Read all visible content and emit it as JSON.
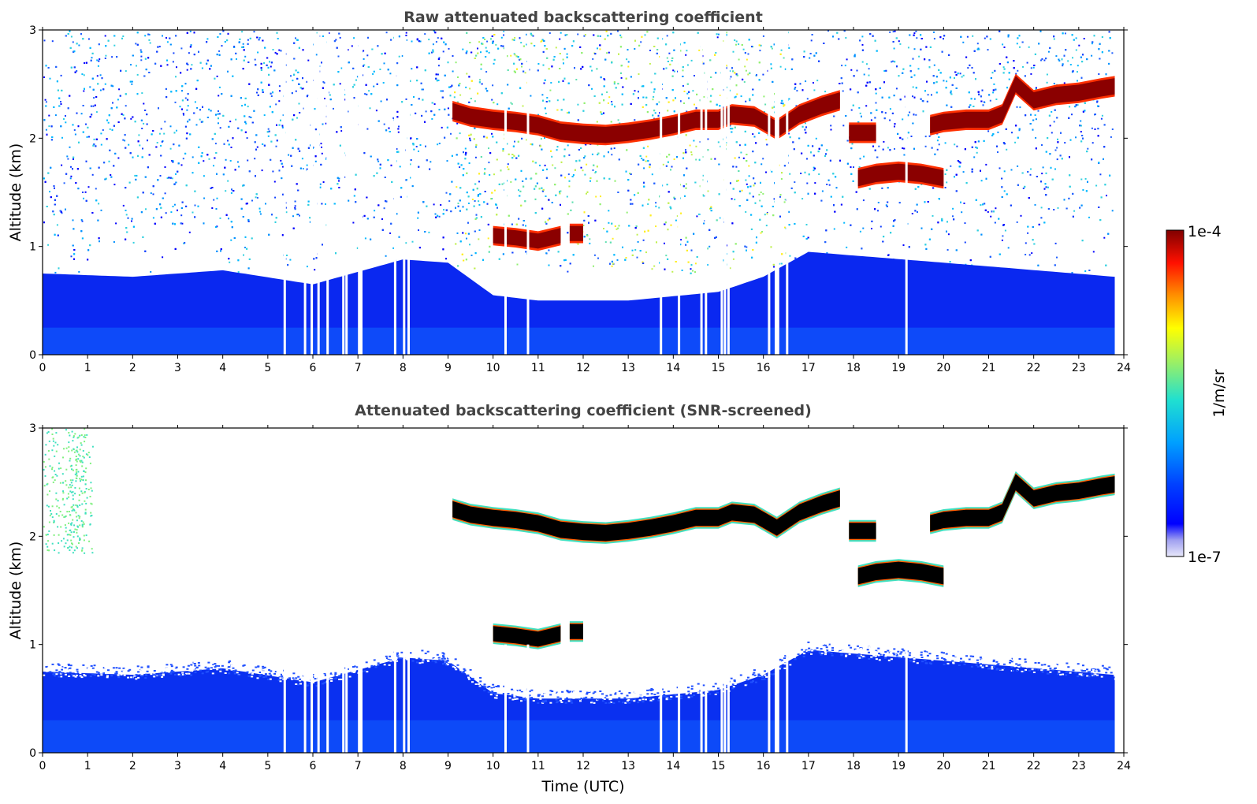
{
  "chart_data": [
    {
      "type": "heatmap",
      "title": "Raw attenuated backscattering coefficient",
      "xlabel": "",
      "ylabel": "Altitude (km)",
      "xlim": [
        0,
        24
      ],
      "ylim": [
        0,
        3
      ],
      "xticks": [
        "0",
        "1",
        "2",
        "3",
        "4",
        "5",
        "6",
        "7",
        "8",
        "9",
        "10",
        "11",
        "12",
        "13",
        "14",
        "15",
        "16",
        "17",
        "18",
        "19",
        "20",
        "21",
        "22",
        "23",
        "24"
      ],
      "yticks": [
        "0",
        "1",
        "2",
        "3"
      ],
      "missing_time_gaps_utc": [
        5.35,
        5.8,
        5.95,
        6.1,
        6.3,
        6.65,
        6.72,
        7.0,
        7.05,
        7.8,
        8.0,
        8.1,
        10.25,
        10.75,
        13.7,
        14.1,
        14.6,
        14.7,
        15.05,
        15.12,
        15.2,
        16.1,
        16.25,
        16.3,
        16.5,
        19.15
      ],
      "boundary_layer_top_km": [
        {
          "t": 0,
          "h": 0.75
        },
        {
          "t": 2,
          "h": 0.72
        },
        {
          "t": 4,
          "h": 0.78
        },
        {
          "t": 6,
          "h": 0.65
        },
        {
          "t": 8,
          "h": 0.88
        },
        {
          "t": 9,
          "h": 0.85
        },
        {
          "t": 10,
          "h": 0.55
        },
        {
          "t": 11,
          "h": 0.5
        },
        {
          "t": 13,
          "h": 0.5
        },
        {
          "t": 15,
          "h": 0.58
        },
        {
          "t": 16,
          "h": 0.72
        },
        {
          "t": 17,
          "h": 0.95
        },
        {
          "t": 20,
          "h": 0.85
        },
        {
          "t": 23.8,
          "h": 0.72
        }
      ],
      "cloud_layers": [
        {
          "t": [
            9.1,
            9.5,
            10,
            10.5,
            11,
            11.5,
            12,
            12.5,
            13,
            13.5,
            14,
            14.5,
            15,
            15.3,
            15.8,
            16.3,
            16.8,
            17.3,
            17.7
          ],
          "h": [
            2.25,
            2.2,
            2.17,
            2.15,
            2.12,
            2.06,
            2.04,
            2.03,
            2.05,
            2.08,
            2.12,
            2.17,
            2.17,
            2.22,
            2.2,
            2.08,
            2.22,
            2.3,
            2.35
          ]
        },
        {
          "t": [
            17.9,
            18.5
          ],
          "h": [
            2.05,
            2.05
          ]
        },
        {
          "t": [
            18.1,
            18.5,
            19,
            19.5,
            20
          ],
          "h": [
            1.63,
            1.67,
            1.69,
            1.67,
            1.63
          ]
        },
        {
          "t": [
            19.7,
            20,
            20.5,
            21,
            21.3,
            21.6,
            22,
            22.5,
            23,
            23.5,
            23.8
          ],
          "h": [
            2.12,
            2.15,
            2.17,
            2.17,
            2.22,
            2.5,
            2.35,
            2.4,
            2.42,
            2.46,
            2.48
          ]
        },
        {
          "t": [
            10.0,
            10.5,
            11.0,
            11.5
          ],
          "h": [
            1.1,
            1.08,
            1.05,
            1.1
          ]
        },
        {
          "t": [
            11.7,
            12.0
          ],
          "h": [
            1.12,
            1.12
          ]
        }
      ],
      "high_noise_window_utc": [
        9.1,
        16.5
      ]
    },
    {
      "type": "heatmap",
      "title": "Attenuated backscattering coefficient (SNR-screened)",
      "xlabel": "Time (UTC)",
      "ylabel": "Altitude (km)",
      "xlim": [
        0,
        24
      ],
      "ylim": [
        0,
        3
      ],
      "xticks": [
        "0",
        "1",
        "2",
        "3",
        "4",
        "5",
        "6",
        "7",
        "8",
        "9",
        "10",
        "11",
        "12",
        "13",
        "14",
        "15",
        "16",
        "17",
        "18",
        "19",
        "20",
        "21",
        "22",
        "23",
        "24"
      ],
      "yticks": [
        "0",
        "1",
        "2",
        "3"
      ]
    }
  ],
  "colorbar": {
    "label": "1/m/sr",
    "max_label": "1e-4",
    "min_label": "1e-7",
    "scale": "log",
    "colormap": [
      "#e0e0f8",
      "#c8c8f4",
      "#9a9af0",
      "#0000ff",
      "#0030ff",
      "#0080ff",
      "#00c0ff",
      "#20e0d0",
      "#60f090",
      "#c0f040",
      "#ffff00",
      "#ffc000",
      "#ff7000",
      "#ff2000",
      "#d00000",
      "#800000"
    ]
  }
}
